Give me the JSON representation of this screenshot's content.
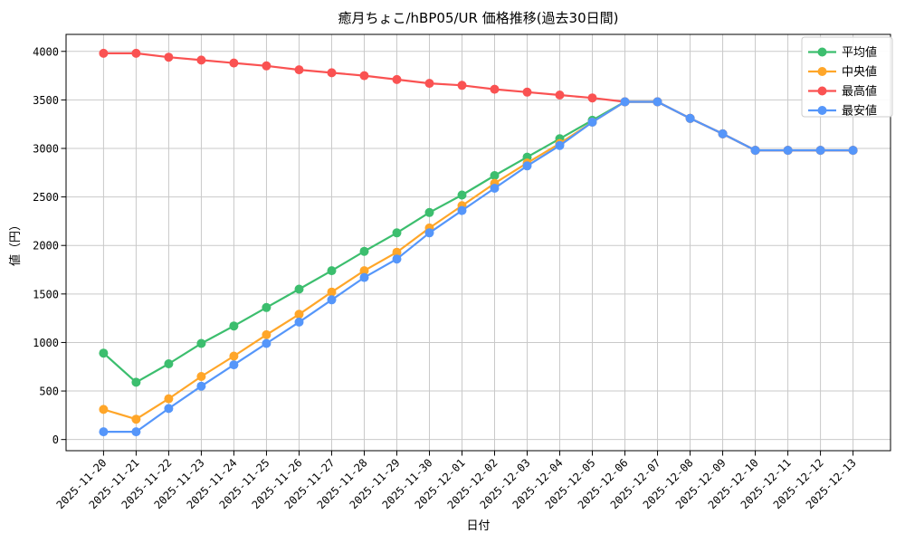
{
  "figure": {
    "background": "#ffffff",
    "grid_color": "#c9c9c9",
    "spine_color": "#000000",
    "legend_border_color": "#cccccc",
    "legend_background": "#ffffff"
  },
  "chart_data": {
    "type": "line",
    "title": "癒月ちょこ/hBP05/UR 価格推移(過去30日間)",
    "xlabel": "日付",
    "ylabel": "値（円）",
    "grid": true,
    "legend_position": "upper right",
    "ylim": [
      0,
      4000
    ],
    "yticks": [
      0,
      500,
      1000,
      1500,
      2000,
      2500,
      3000,
      3500,
      4000
    ],
    "x": [
      "2025-11-20",
      "2025-11-21",
      "2025-11-22",
      "2025-11-23",
      "2025-11-24",
      "2025-11-25",
      "2025-11-26",
      "2025-11-27",
      "2025-11-28",
      "2025-11-29",
      "2025-11-30",
      "2025-12-01",
      "2025-12-02",
      "2025-12-03",
      "2025-12-04",
      "2025-12-05",
      "2025-12-06",
      "2025-12-07",
      "2025-12-08",
      "2025-12-09",
      "2025-12-10",
      "2025-12-11",
      "2025-12-12",
      "2025-12-13"
    ],
    "series": [
      {
        "name": "平均値",
        "key": "average",
        "color": "#3cbe6e",
        "values": [
          890,
          590,
          780,
          990,
          1170,
          1360,
          1550,
          1740,
          1940,
          2130,
          2340,
          2520,
          2720,
          2910,
          3100,
          3290,
          3480,
          3480,
          3310,
          3150,
          2980,
          2980,
          2980,
          2980
        ]
      },
      {
        "name": "中央値",
        "key": "median",
        "color": "#ffa629",
        "values": [
          310,
          210,
          420,
          650,
          860,
          1080,
          1290,
          1520,
          1740,
          1930,
          2180,
          2410,
          2640,
          2850,
          3050,
          3270,
          3480,
          3480,
          3310,
          3150,
          2980,
          2980,
          2980,
          2980
        ]
      },
      {
        "name": "最高値",
        "key": "max",
        "color": "#fa5252",
        "values": [
          3980,
          3980,
          3940,
          3910,
          3880,
          3850,
          3810,
          3780,
          3750,
          3710,
          3670,
          3650,
          3610,
          3580,
          3550,
          3520,
          3480,
          3480,
          3310,
          3150,
          2980,
          2980,
          2980,
          2980
        ]
      },
      {
        "name": "最安値",
        "key": "min",
        "color": "#5596fa",
        "values": [
          80,
          80,
          320,
          550,
          770,
          990,
          1210,
          1440,
          1670,
          1860,
          2130,
          2360,
          2590,
          2820,
          3030,
          3270,
          3480,
          3480,
          3310,
          3150,
          2980,
          2980,
          2980,
          2980
        ]
      }
    ]
  }
}
